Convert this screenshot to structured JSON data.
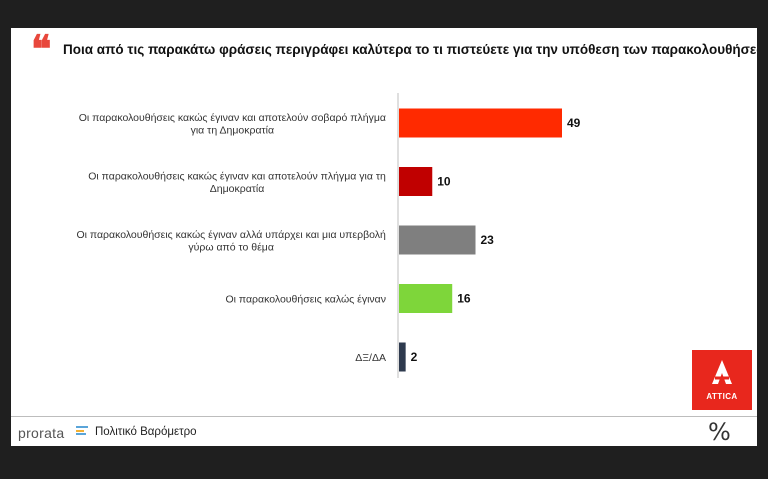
{
  "header": {
    "quote_glyph": "❝",
    "title": "Ποια από τις παρακάτω φράσεις περιγράφει καλύτερα το τι πιστεύετε για την υπόθεση των παρακολουθήσεων;"
  },
  "chart_data": {
    "type": "bar",
    "orientation": "horizontal",
    "categories": [
      [
        "Οι παρακολουθήσεις κακώς έγιναν και αποτελούν σοβαρό πλήγμα",
        "για τη Δημοκρατία"
      ],
      [
        "Οι παρακολουθήσεις κακώς έγιναν και αποτελούν πλήγμα για τη",
        "Δημοκρατία"
      ],
      [
        "Οι παρακολουθήσεις κακώς έγιναν αλλά υπάρχει και μια υπερβολή",
        "γύρω από το θέμα"
      ],
      [
        "Οι παρακολουθήσεις καλώς έγιναν"
      ],
      [
        "ΔΞ/ΔΑ"
      ]
    ],
    "values": [
      49,
      10,
      23,
      16,
      2
    ],
    "colors": [
      "#ff2a00",
      "#c00000",
      "#7f7f7f",
      "#7ed63a",
      "#2e3a4e"
    ],
    "xlim": [
      0,
      49
    ],
    "grid": false,
    "legend": "none"
  },
  "footer": {
    "brand": "prorata",
    "subtitle": "Πολιτικό Βαρόμετρο",
    "percent_symbol": "%"
  },
  "logo": {
    "name": "attica-logo",
    "text": "ATTICA",
    "color": "#e8271d"
  }
}
